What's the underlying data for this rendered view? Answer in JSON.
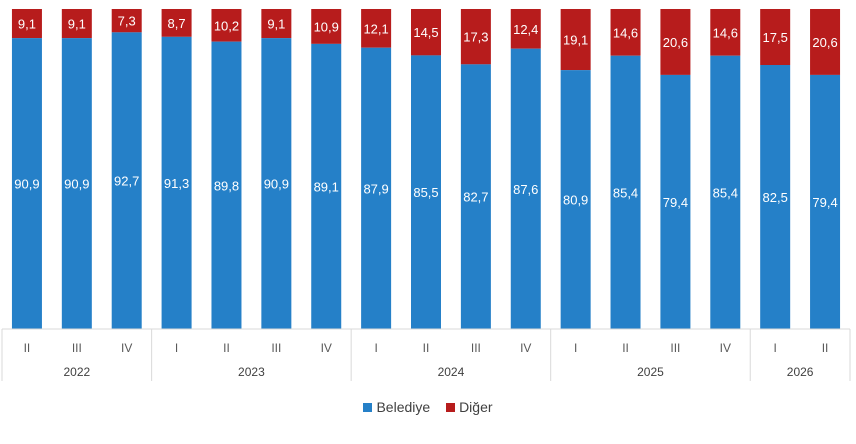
{
  "chart_data": {
    "type": "bar",
    "stacked": "100%",
    "quarters": [
      "II",
      "III",
      "IV",
      "I",
      "II",
      "III",
      "IV",
      "I",
      "II",
      "III",
      "IV",
      "I",
      "II",
      "III",
      "IV",
      "I",
      "II"
    ],
    "years": [
      {
        "label": "2022",
        "count": 3
      },
      {
        "label": "2023",
        "count": 4
      },
      {
        "label": "2024",
        "count": 4
      },
      {
        "label": "2025",
        "count": 4
      },
      {
        "label": "2026",
        "count": 2
      }
    ],
    "series": [
      {
        "name": "Belediye",
        "color": "#2580C8",
        "values": [
          90.9,
          90.9,
          92.7,
          91.3,
          89.8,
          90.9,
          89.1,
          87.9,
          85.5,
          82.7,
          87.6,
          80.9,
          85.4,
          79.4,
          85.4,
          82.5,
          79.4
        ],
        "labels": [
          "90,9",
          "90,9",
          "92,7",
          "91,3",
          "89,8",
          "90,9",
          "89,1",
          "87,9",
          "85,5",
          "82,7",
          "87,6",
          "80,9",
          "85,4",
          "79,4",
          "85,4",
          "82,5",
          "79,4"
        ]
      },
      {
        "name": "Diğer",
        "color": "#B71C1C",
        "values": [
          9.1,
          9.1,
          7.3,
          8.7,
          10.2,
          9.1,
          10.9,
          12.1,
          14.5,
          17.3,
          12.4,
          19.1,
          14.6,
          20.6,
          14.6,
          17.5,
          20.6
        ],
        "labels": [
          "9,1",
          "9,1",
          "7,3",
          "8,7",
          "10,2",
          "9,1",
          "10,9",
          "12,1",
          "14,5",
          "17,3",
          "12,4",
          "19,1",
          "14,6",
          "20,6",
          "14,6",
          "17,5",
          "20,6"
        ]
      }
    ],
    "ylim": [
      0,
      100
    ],
    "legend_position": "bottom"
  }
}
